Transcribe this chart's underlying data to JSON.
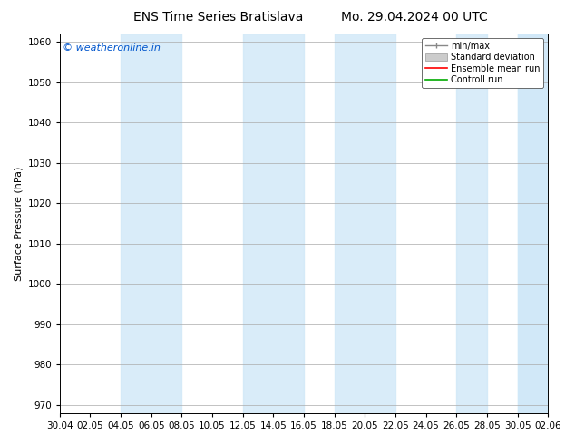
{
  "title_left": "ENS Time Series Bratislava",
  "title_right": "Mo. 29.04.2024 00 UTC",
  "ylabel": "Surface Pressure (hPa)",
  "ylim": [
    968,
    1062
  ],
  "yticks": [
    970,
    980,
    990,
    1000,
    1010,
    1020,
    1030,
    1040,
    1050,
    1060
  ],
  "xtick_labels": [
    "30.04",
    "02.05",
    "04.05",
    "06.05",
    "08.05",
    "10.05",
    "12.05",
    "14.05",
    "16.05",
    "18.05",
    "20.05",
    "22.05",
    "24.05",
    "26.05",
    "28.05",
    "30.05",
    "02.06"
  ],
  "watermark": "© weatheronline.in",
  "watermark_color": "#0055cc",
  "shaded_band_color": "#d0e8f8",
  "shaded_band_alpha": 0.8,
  "background_color": "#ffffff",
  "grid_color": "#aaaaaa",
  "legend_items": [
    "min/max",
    "Standard deviation",
    "Ensemble mean run",
    "Controll run"
  ],
  "legend_colors": [
    "#888888",
    "#aaaaaa",
    "#ff0000",
    "#00aa00"
  ],
  "title_fontsize": 10,
  "ylabel_fontsize": 8,
  "tick_fontsize": 7.5,
  "watermark_fontsize": 8,
  "legend_fontsize": 7,
  "shaded_indices": [
    2,
    3,
    6,
    7,
    9,
    10,
    13,
    15,
    16
  ]
}
